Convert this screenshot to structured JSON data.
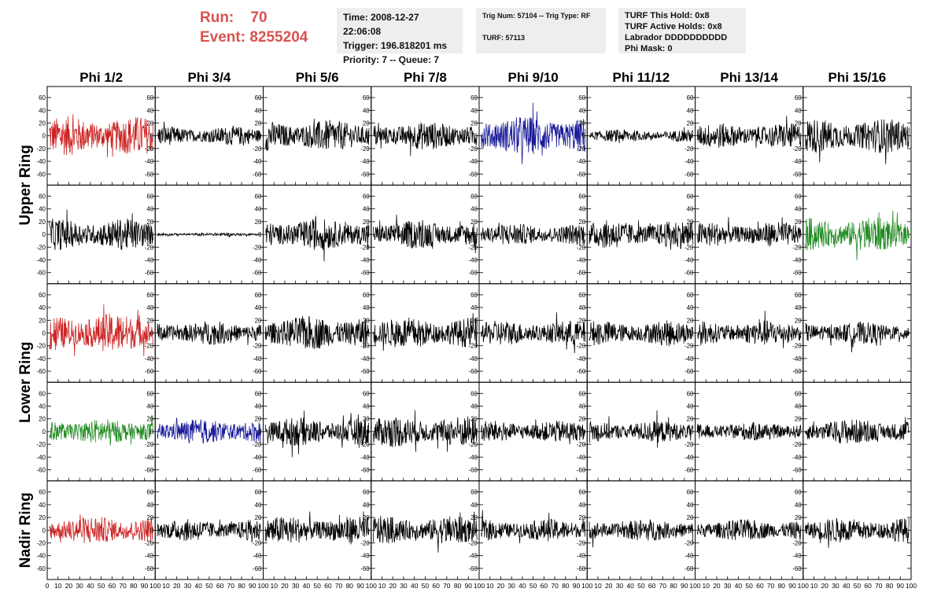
{
  "header": {
    "run_label": "Run:",
    "run_value": "70",
    "event_label": "Event:",
    "event_value": "8255204"
  },
  "info_panel_1": {
    "time": "Time: 2008-12-27 22:06:08",
    "trigger": "Trigger: 196.818201 ms",
    "priority": "Priority: 7 -- Queue: 7"
  },
  "info_panel_2": {
    "trig": "Trig Num: 57104 -- Trig Type: RF",
    "turf": "TURF: 57113"
  },
  "info_panel_3": {
    "hold": "TURF This Hold: 0x8",
    "active": "TURF Active Holds: 0x8",
    "labrador": "Labrador DDDDDDDDDD",
    "phimask": "Phi Mask: 0"
  },
  "chart_data": {
    "type": "line",
    "columns": [
      "Phi 1/2",
      "Phi 3/4",
      "Phi 5/6",
      "Phi 7/8",
      "Phi 9/10",
      "Phi 11/12",
      "Phi 13/14",
      "Phi 15/16"
    ],
    "rows": [
      {
        "label": "Upper Ring",
        "label_span": 2,
        "colors": [
          "#cc2222",
          "#000000",
          "#000000",
          "#000000",
          "#1a1a99",
          "#000000",
          "#000000",
          "#000000"
        ],
        "amplitudes": [
          25,
          12,
          20,
          18,
          25,
          8,
          16,
          22
        ]
      },
      {
        "label": "",
        "label_span": 0,
        "colors": [
          "#000000",
          "#000000",
          "#000000",
          "#000000",
          "#000000",
          "#000000",
          "#000000",
          "#228b22"
        ],
        "amplitudes": [
          20,
          2,
          20,
          18,
          14,
          18,
          16,
          22
        ]
      },
      {
        "label": "Lower Ring",
        "label_span": 2,
        "colors": [
          "#cc2222",
          "#000000",
          "#000000",
          "#000000",
          "#000000",
          "#000000",
          "#000000",
          "#000000"
        ],
        "amplitudes": [
          25,
          15,
          22,
          20,
          16,
          16,
          16,
          14
        ]
      },
      {
        "label": "",
        "label_span": 0,
        "colors": [
          "#228b22",
          "#1a1a99",
          "#000000",
          "#000000",
          "#000000",
          "#000000",
          "#000000",
          "#000000"
        ],
        "amplitudes": [
          16,
          16,
          18,
          20,
          14,
          14,
          12,
          16
        ]
      },
      {
        "label": "Nadir Ring",
        "label_span": 1,
        "colors": [
          "#cc2222",
          "#000000",
          "#000000",
          "#000000",
          "#000000",
          "#000000",
          "#000000",
          "#000000"
        ],
        "amplitudes": [
          18,
          14,
          18,
          18,
          14,
          14,
          14,
          16
        ]
      }
    ],
    "y_ticks": [
      -60,
      -40,
      -20,
      0,
      20,
      40,
      60
    ],
    "ylim": [
      -70,
      70
    ],
    "x_ticks": [
      0,
      10,
      20,
      30,
      40,
      50,
      60,
      70,
      80,
      90,
      100
    ],
    "xlim": [
      0,
      100
    ],
    "samples_per_trace": 260
  }
}
